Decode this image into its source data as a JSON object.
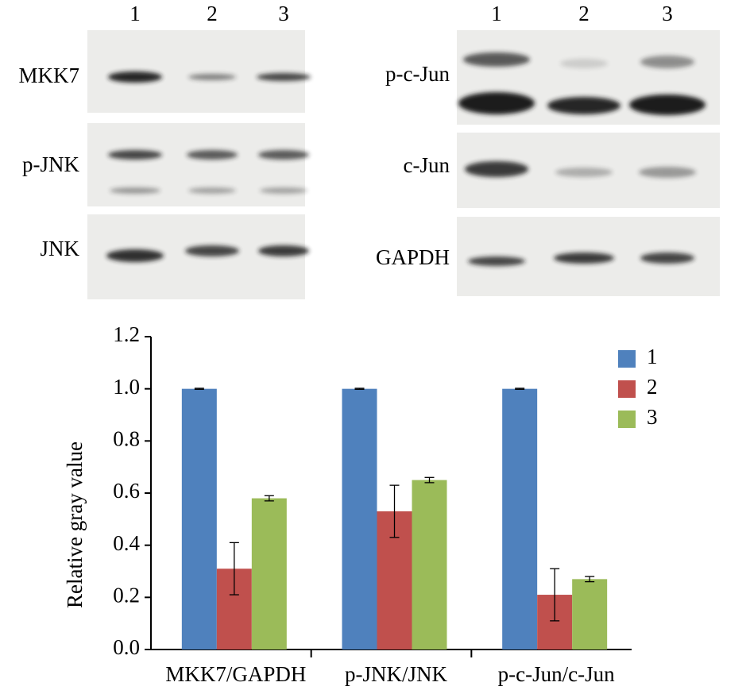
{
  "blots": {
    "left": {
      "lanes": [
        "1",
        "2",
        "3"
      ],
      "rows": [
        "MKK7",
        "p-JNK",
        "JNK"
      ]
    },
    "right": {
      "lanes": [
        "1",
        "2",
        "3"
      ],
      "rows": [
        "p-c-Jun",
        "c-Jun",
        "GAPDH"
      ]
    }
  },
  "chart_data": {
    "type": "bar",
    "ylabel": "Relative gray value",
    "categories": [
      "MKK7/GAPDH",
      "p-JNK/JNK",
      "p-c-Jun/c-Jun"
    ],
    "series": [
      {
        "name": "1",
        "color": "#4f81bd",
        "values": [
          1.0,
          1.0,
          1.0
        ],
        "errors": [
          0.002,
          0.002,
          0.002
        ]
      },
      {
        "name": "2",
        "color": "#c0504d",
        "values": [
          0.31,
          0.53,
          0.21
        ],
        "errors": [
          0.1,
          0.1,
          0.1
        ]
      },
      {
        "name": "3",
        "color": "#9bbb59",
        "values": [
          0.58,
          0.65,
          0.27
        ],
        "errors": [
          0.01,
          0.01,
          0.01
        ]
      }
    ],
    "ylim": [
      0,
      1.2
    ],
    "yticks": [
      {
        "value": 0,
        "label": "0.0"
      },
      0.2,
      0.4,
      0.6,
      0.8,
      {
        "value": 1,
        "label": "1.0"
      },
      1.2
    ],
    "legend": "upper right"
  }
}
